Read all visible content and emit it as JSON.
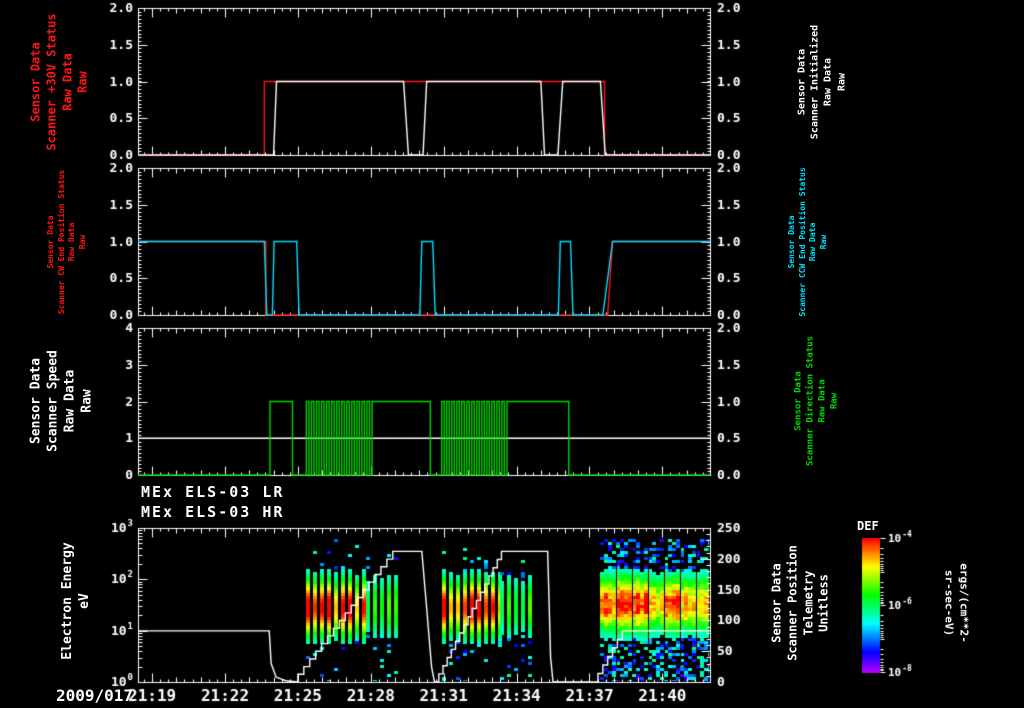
{
  "background": "#000000",
  "titles": {
    "p1_left": {
      "text": "Sensor Data\nScanner +30V Status\nRaw Data\nRaw",
      "color": "#ff1515"
    },
    "p1_right": {
      "text": "Sensor Data\nScanner Initialized\nRaw Data\nRaw",
      "color": "#ffffff"
    },
    "p2_left": {
      "text": "Sensor Data\nScanner CW End Position Status\nRaw Data\nRaw",
      "color": "#ff1515"
    },
    "p2_right": {
      "text": "Sensor Data\nScanner CCW End Position Status\nRaw Data\nRaw",
      "color": "#00e0ff"
    },
    "p3_left": {
      "text": "Sensor Data\nScanner Speed\nRaw Data\nRaw",
      "color": "#ffffff"
    },
    "p3_right": {
      "text": "Sensor Data\nScanner Direction Status\nRaw Data\nRaw",
      "color": "#00d800"
    },
    "p4_left": {
      "text": "Electron Energy\neV",
      "color": "#ffffff"
    },
    "p4_right": {
      "text": "Sensor Data\nScanner Position\nTelemetry\nUnitless",
      "color": "#ffffff"
    }
  },
  "spectrogram_titles": {
    "lr": "MEx ELS-03 LR",
    "hr": "MEx ELS-03 HR"
  },
  "x_axis": {
    "date": "2009/017",
    "t_min": 18.42,
    "t_max": 41.96,
    "tick_minutes": [
      19,
      22,
      25,
      28,
      31,
      34,
      37,
      40
    ],
    "tick_labels": [
      "21:19",
      "21:22",
      "21:25",
      "21:28",
      "21:31",
      "21:34",
      "21:37",
      "21:40"
    ]
  },
  "colorbar": {
    "title": "DEF",
    "unit": "ergs/(cm**2-sr-sec-eV)",
    "tick_exponents": [
      "-4",
      "-6",
      "-8"
    ],
    "scale": "log rainbow, red=10^-4 (top) to violet=10^-8 (bottom)"
  },
  "chart_data": [
    {
      "type": "line",
      "name": "scanner-30v-and-initialized",
      "y_left": {
        "range": [
          0,
          2
        ],
        "majors": [
          0,
          0.5,
          1,
          1.5,
          2
        ],
        "labels": [
          "0.0",
          "0.5",
          "1.0",
          "1.5",
          "2.0"
        ],
        "minor_step": 0.05
      },
      "y_right": {
        "range": [
          0,
          2
        ],
        "majors": [
          0,
          0.5,
          1,
          1.5,
          2
        ],
        "labels": [
          "0.0",
          "0.5",
          "1.0",
          "1.5",
          "2.0"
        ],
        "minor_step": 0.05
      },
      "series": [
        {
          "name": "Scanner +30V Status Raw",
          "color": "#ff1515",
          "axis": "left",
          "points": [
            [
              18.42,
              0
            ],
            [
              23.62,
              0
            ],
            [
              23.62,
              1
            ],
            [
              37.62,
              1
            ],
            [
              37.62,
              0
            ],
            [
              41.96,
              0
            ]
          ]
        },
        {
          "name": "Scanner Initialized Raw",
          "color": "#ffffff",
          "axis": "left",
          "points": [
            [
              18.42,
              0
            ],
            [
              24.0,
              0
            ],
            [
              24.12,
              1
            ],
            [
              29.35,
              1
            ],
            [
              29.55,
              0
            ],
            [
              30.15,
              0
            ],
            [
              30.3,
              1
            ],
            [
              35.0,
              1
            ],
            [
              35.15,
              0
            ],
            [
              35.7,
              0
            ],
            [
              35.9,
              1
            ],
            [
              37.45,
              1
            ],
            [
              37.65,
              0
            ],
            [
              41.96,
              0
            ]
          ]
        }
      ]
    },
    {
      "type": "line",
      "name": "scanner-end-position-status",
      "y_left": {
        "range": [
          0,
          2
        ],
        "majors": [
          0,
          0.5,
          1,
          1.5,
          2
        ],
        "labels": [
          "0.0",
          "0.5",
          "1.0",
          "1.5",
          "2.0"
        ],
        "minor_step": 0.05
      },
      "y_right": {
        "range": [
          0,
          2
        ],
        "majors": [
          0,
          0.5,
          1,
          1.5,
          2
        ],
        "labels": [
          "0.0",
          "0.5",
          "1.0",
          "1.5",
          "2.0"
        ],
        "minor_step": 0.05
      },
      "series": [
        {
          "name": "Scanner CW End Position Status Raw",
          "color": "#ff1515",
          "axis": "left",
          "points": [
            [
              18.42,
              1
            ],
            [
              23.68,
              1
            ],
            [
              23.68,
              0
            ],
            [
              37.75,
              0
            ],
            [
              37.95,
              1
            ],
            [
              41.96,
              1
            ]
          ]
        },
        {
          "name": "Scanner CCW End Position Status Raw",
          "color": "#00e0ff",
          "axis": "left",
          "points": [
            [
              18.42,
              1
            ],
            [
              23.62,
              1
            ],
            [
              23.72,
              0
            ],
            [
              23.95,
              0
            ],
            [
              24.02,
              1
            ],
            [
              24.95,
              1
            ],
            [
              25.05,
              0
            ],
            [
              30.02,
              0
            ],
            [
              30.1,
              1
            ],
            [
              30.55,
              1
            ],
            [
              30.65,
              0
            ],
            [
              35.72,
              0
            ],
            [
              35.8,
              1
            ],
            [
              36.22,
              1
            ],
            [
              36.32,
              0
            ],
            [
              37.55,
              0
            ],
            [
              37.95,
              1
            ],
            [
              41.96,
              1
            ]
          ]
        }
      ]
    },
    {
      "type": "line",
      "name": "scanner-speed-and-direction",
      "y_left": {
        "range": [
          0,
          4
        ],
        "majors": [
          0,
          1,
          2,
          3,
          4
        ],
        "labels": [
          "0",
          "1",
          "2",
          "3",
          "4"
        ],
        "minor_step": 0.1
      },
      "y_right": {
        "range": [
          0,
          2
        ],
        "majors": [
          0,
          0.5,
          1,
          1.5,
          2
        ],
        "labels": [
          "0.0",
          "0.5",
          "1.0",
          "1.5",
          "2.0"
        ],
        "minor_step": 0.05
      },
      "series": [
        {
          "name": "Scanner Speed Raw",
          "color": "#ffffff",
          "axis": "left",
          "points": [
            [
              18.42,
              1
            ],
            [
              41.96,
              1
            ]
          ]
        },
        {
          "name": "Scanner Direction Status Raw",
          "color": "#00d800",
          "axis": "right",
          "points": [
            [
              18.42,
              0
            ],
            [
              23.85,
              0
            ],
            [
              23.85,
              1
            ],
            [
              24.78,
              1
            ],
            [
              24.78,
              0
            ],
            [
              25.35,
              0
            ],
            {
              "osc": {
                "t1": 28.05,
                "cycles": 13
              }
            },
            [
              28.05,
              1
            ],
            [
              30.45,
              1
            ],
            [
              30.45,
              0
            ],
            [
              30.92,
              0
            ],
            {
              "osc": {
                "t1": 33.6,
                "cycles": 13
              }
            },
            [
              33.6,
              1
            ],
            [
              36.15,
              1
            ],
            [
              36.15,
              0
            ],
            [
              41.96,
              0
            ]
          ]
        }
      ]
    },
    {
      "type": "spectrogram",
      "name": "electron-energy-flux",
      "y_left": {
        "scale": "log",
        "range": [
          1,
          1000
        ],
        "decade_exponents": [
          "0",
          "1",
          "2",
          "3"
        ]
      },
      "y_right": {
        "range": [
          0,
          250
        ],
        "majors": [
          0,
          50,
          100,
          150,
          200,
          250
        ],
        "labels": [
          "0",
          "50",
          "100",
          "150",
          "200",
          "250"
        ],
        "minor_step": 10
      },
      "bursts": [
        {
          "t0": 25.32,
          "t1": 27.8,
          "style": "striped",
          "peak_log_ev": 1.48,
          "sigma_log": 0.4,
          "max_ev": 620,
          "intensity": 1.0
        },
        {
          "t0": 27.8,
          "t1": 29.15,
          "style": "striped",
          "peak_log_ev": 1.5,
          "sigma_log": 0.45,
          "max_ev": 420,
          "intensity": 0.5
        },
        {
          "t0": 30.95,
          "t1": 33.3,
          "style": "striped",
          "peak_log_ev": 1.48,
          "sigma_log": 0.4,
          "max_ev": 620,
          "intensity": 1.0
        },
        {
          "t0": 33.3,
          "t1": 34.55,
          "style": "striped",
          "peak_log_ev": 1.5,
          "sigma_log": 0.45,
          "max_ev": 420,
          "intensity": 0.5
        },
        {
          "t0": 37.45,
          "t1": 41.96,
          "style": "solid",
          "peak_log_ev": 1.55,
          "sigma_log": 0.38,
          "max_ev": 650,
          "intensity": 0.95
        }
      ],
      "series": [
        {
          "name": "Scanner Position Telemetry",
          "color": "#ffffff",
          "axis": "right",
          "points": [
            [
              18.42,
              83
            ],
            [
              23.82,
              83
            ],
            [
              23.9,
              30
            ],
            [
              24.1,
              8
            ],
            [
              24.5,
              2
            ],
            [
              25.0,
              0
            ],
            {
              "stair": {
                "t1": 29.15,
                "v1": 212,
                "steps": 17
              }
            },
            [
              30.1,
              212
            ],
            [
              30.3,
              120
            ],
            [
              30.5,
              25
            ],
            [
              30.62,
              0
            ],
            [
              30.8,
              0
            ],
            {
              "stair": {
                "t1": 33.55,
                "v1": 212,
                "steps": 16
              }
            },
            [
              35.28,
              212
            ],
            [
              35.4,
              40
            ],
            [
              35.5,
              0
            ],
            [
              37.35,
              0
            ],
            {
              "stair": {
                "t1": 38.55,
                "v1": 83,
                "steps": 6
              }
            },
            [
              41.96,
              83
            ]
          ]
        }
      ]
    }
  ]
}
